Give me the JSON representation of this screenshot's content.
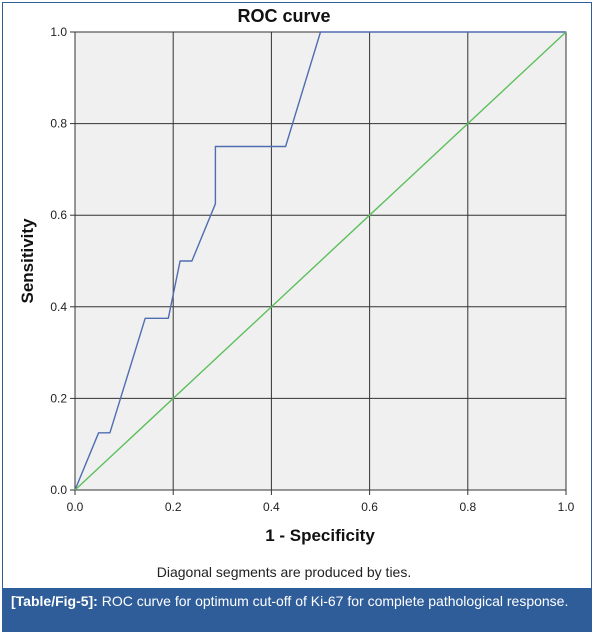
{
  "chart_data": {
    "type": "line",
    "title": "ROC curve",
    "xlabel": "1 - Specificity",
    "ylabel": "Sensitivity",
    "xlim": [
      0.0,
      1.0
    ],
    "ylim": [
      0.0,
      1.0
    ],
    "xticks": [
      "0.0",
      "0.2",
      "0.4",
      "0.6",
      "0.8",
      "1.0"
    ],
    "yticks": [
      "0.0",
      "0.2",
      "0.4",
      "0.6",
      "0.8",
      "1.0"
    ],
    "grid": true,
    "series": [
      {
        "color": "#4f6db0",
        "points": [
          [
            0.0,
            0.0
          ],
          [
            0.048,
            0.125
          ],
          [
            0.071,
            0.125
          ],
          [
            0.143,
            0.375
          ],
          [
            0.19,
            0.375
          ],
          [
            0.214,
            0.5
          ],
          [
            0.238,
            0.5
          ],
          [
            0.286,
            0.625
          ],
          [
            0.286,
            0.75
          ],
          [
            0.429,
            0.75
          ],
          [
            0.5,
            1.0
          ],
          [
            1.0,
            1.0
          ]
        ]
      },
      {
        "color": "#5cbf5c",
        "points": [
          [
            0.0,
            0.0
          ],
          [
            1.0,
            1.0
          ]
        ]
      }
    ],
    "footnote": "Diagonal segments are produced by ties."
  },
  "caption": {
    "label": "[Table/Fig-5]:",
    "text": " ROC curve for optimum cut-off of Ki-67 for complete pathological response."
  }
}
